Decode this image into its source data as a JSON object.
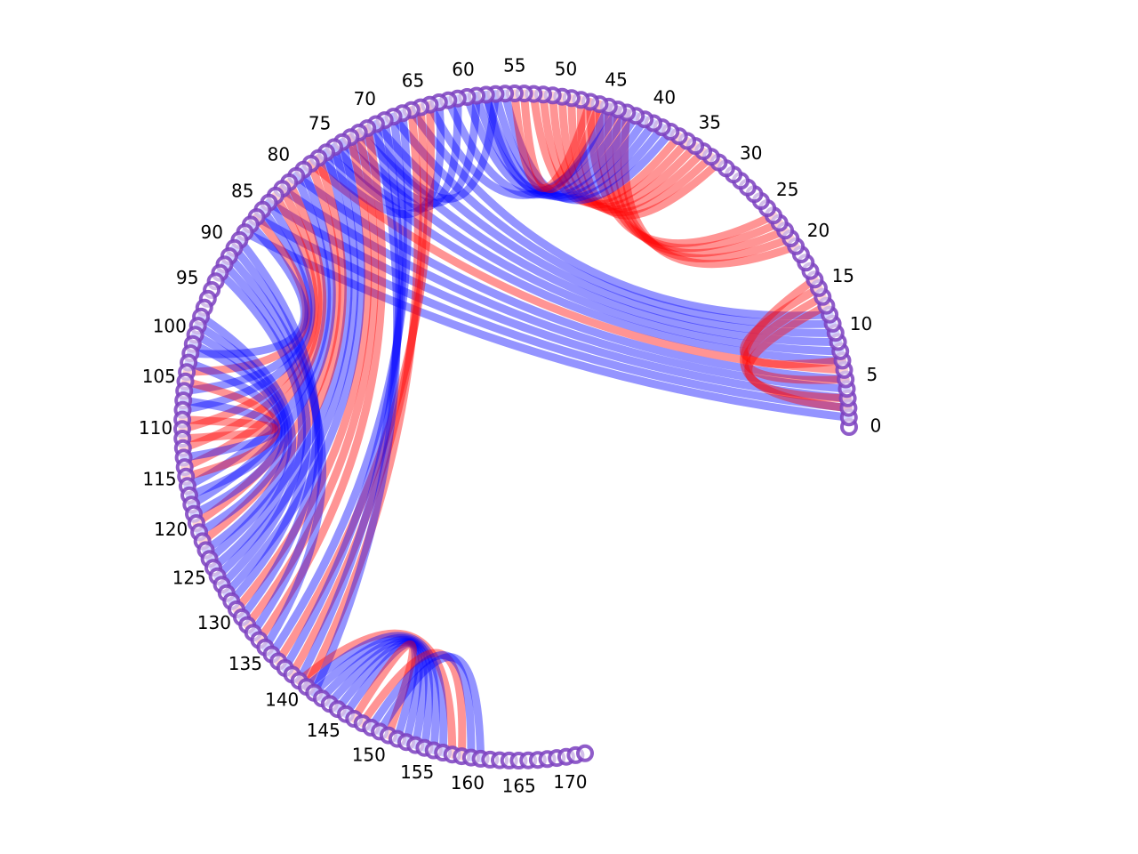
{
  "diagram": {
    "type": "arc-diagram",
    "node_count": 173,
    "first_node": 0,
    "last_node": 172,
    "label_step": 5,
    "tick_labels": [
      "0",
      "5",
      "10",
      "15",
      "20",
      "25",
      "30",
      "35",
      "40",
      "45",
      "50",
      "55",
      "60",
      "65",
      "70",
      "75",
      "80",
      "85",
      "90",
      "95",
      "100",
      "105",
      "110",
      "115",
      "120",
      "125",
      "130",
      "135",
      "140",
      "145",
      "150",
      "155",
      "160",
      "165",
      "170"
    ],
    "colors": {
      "red": "#ff0000",
      "blue": "#0000ff",
      "node_fill": "#7b3fbf",
      "node_stroke": "#5a2ea6"
    },
    "links": [
      {
        "source": 1,
        "target": 88,
        "color": "blue"
      },
      {
        "source": 2,
        "target": 86,
        "color": "blue"
      },
      {
        "source": 3,
        "target": 84,
        "color": "blue"
      },
      {
        "source": 4,
        "target": 82,
        "color": "blue"
      },
      {
        "source": 5,
        "target": 80,
        "color": "blue"
      },
      {
        "source": 6,
        "target": 78,
        "color": "red"
      },
      {
        "source": 7,
        "target": 76,
        "color": "blue"
      },
      {
        "source": 8,
        "target": 74,
        "color": "blue"
      },
      {
        "source": 9,
        "target": 72,
        "color": "blue"
      },
      {
        "source": 10,
        "target": 70,
        "color": "blue"
      },
      {
        "source": 11,
        "target": 68,
        "color": "blue"
      },
      {
        "source": 12,
        "target": 66,
        "color": "blue"
      },
      {
        "source": 13,
        "target": 3,
        "color": "red"
      },
      {
        "source": 14,
        "target": 5,
        "color": "red"
      },
      {
        "source": 15,
        "target": 7,
        "color": "red"
      },
      {
        "source": 16,
        "target": 2,
        "color": "red"
      },
      {
        "source": 20,
        "target": 43,
        "color": "red"
      },
      {
        "source": 21,
        "target": 44,
        "color": "red"
      },
      {
        "source": 22,
        "target": 45,
        "color": "red"
      },
      {
        "source": 23,
        "target": 46,
        "color": "red"
      },
      {
        "source": 24,
        "target": 47,
        "color": "red"
      },
      {
        "source": 32,
        "target": 48,
        "color": "red"
      },
      {
        "source": 33,
        "target": 49,
        "color": "red"
      },
      {
        "source": 34,
        "target": 50,
        "color": "red"
      },
      {
        "source": 35,
        "target": 51,
        "color": "red"
      },
      {
        "source": 36,
        "target": 52,
        "color": "red"
      },
      {
        "source": 37,
        "target": 53,
        "color": "red"
      },
      {
        "source": 38,
        "target": 56,
        "color": "blue"
      },
      {
        "source": 39,
        "target": 57,
        "color": "blue"
      },
      {
        "source": 40,
        "target": 58,
        "color": "blue"
      },
      {
        "source": 41,
        "target": 59,
        "color": "blue"
      },
      {
        "source": 42,
        "target": 60,
        "color": "blue"
      },
      {
        "source": 43,
        "target": 62,
        "color": "blue"
      },
      {
        "source": 44,
        "target": 64,
        "color": "blue"
      },
      {
        "source": 45,
        "target": 58,
        "color": "blue"
      },
      {
        "source": 46,
        "target": 54,
        "color": "red"
      },
      {
        "source": 47,
        "target": 55,
        "color": "red"
      },
      {
        "source": 57,
        "target": 71,
        "color": "blue"
      },
      {
        "source": 59,
        "target": 73,
        "color": "blue"
      },
      {
        "source": 61,
        "target": 75,
        "color": "blue"
      },
      {
        "source": 63,
        "target": 77,
        "color": "blue"
      },
      {
        "source": 64,
        "target": 137,
        "color": "red"
      },
      {
        "source": 65,
        "target": 139,
        "color": "red"
      },
      {
        "source": 66,
        "target": 141,
        "color": "red"
      },
      {
        "source": 67,
        "target": 136,
        "color": "blue"
      },
      {
        "source": 68,
        "target": 138,
        "color": "blue"
      },
      {
        "source": 69,
        "target": 140,
        "color": "blue"
      },
      {
        "source": 70,
        "target": 142,
        "color": "blue"
      },
      {
        "source": 71,
        "target": 134,
        "color": "red"
      },
      {
        "source": 72,
        "target": 132,
        "color": "red"
      },
      {
        "source": 73,
        "target": 130,
        "color": "red"
      },
      {
        "source": 74,
        "target": 128,
        "color": "blue"
      },
      {
        "source": 75,
        "target": 126,
        "color": "blue"
      },
      {
        "source": 76,
        "target": 124,
        "color": "blue"
      },
      {
        "source": 77,
        "target": 122,
        "color": "red"
      },
      {
        "source": 78,
        "target": 120,
        "color": "red"
      },
      {
        "source": 79,
        "target": 118,
        "color": "blue"
      },
      {
        "source": 80,
        "target": 116,
        "color": "blue"
      },
      {
        "source": 81,
        "target": 114,
        "color": "red"
      },
      {
        "source": 82,
        "target": 112,
        "color": "red"
      },
      {
        "source": 83,
        "target": 110,
        "color": "red"
      },
      {
        "source": 84,
        "target": 108,
        "color": "blue"
      },
      {
        "source": 85,
        "target": 106,
        "color": "blue"
      },
      {
        "source": 86,
        "target": 104,
        "color": "red"
      },
      {
        "source": 87,
        "target": 102,
        "color": "blue"
      },
      {
        "source": 89,
        "target": 131,
        "color": "blue"
      },
      {
        "source": 90,
        "target": 133,
        "color": "blue"
      },
      {
        "source": 91,
        "target": 135,
        "color": "blue"
      },
      {
        "source": 92,
        "target": 129,
        "color": "blue"
      },
      {
        "source": 93,
        "target": 127,
        "color": "blue"
      },
      {
        "source": 98,
        "target": 125,
        "color": "blue"
      },
      {
        "source": 99,
        "target": 123,
        "color": "blue"
      },
      {
        "source": 100,
        "target": 121,
        "color": "blue"
      },
      {
        "source": 101,
        "target": 119,
        "color": "blue"
      },
      {
        "source": 103,
        "target": 117,
        "color": "blue"
      },
      {
        "source": 105,
        "target": 115,
        "color": "red"
      },
      {
        "source": 107,
        "target": 113,
        "color": "blue"
      },
      {
        "source": 109,
        "target": 111,
        "color": "red"
      },
      {
        "source": 140,
        "target": 158,
        "color": "red"
      },
      {
        "source": 141,
        "target": 157,
        "color": "blue"
      },
      {
        "source": 142,
        "target": 156,
        "color": "blue"
      },
      {
        "source": 143,
        "target": 155,
        "color": "blue"
      },
      {
        "source": 144,
        "target": 154,
        "color": "blue"
      },
      {
        "source": 145,
        "target": 153,
        "color": "blue"
      },
      {
        "source": 146,
        "target": 152,
        "color": "blue"
      },
      {
        "source": 147,
        "target": 151,
        "color": "red"
      },
      {
        "source": 148,
        "target": 159,
        "color": "red"
      },
      {
        "source": 149,
        "target": 160,
        "color": "blue"
      },
      {
        "source": 150,
        "target": 161,
        "color": "blue"
      }
    ]
  }
}
